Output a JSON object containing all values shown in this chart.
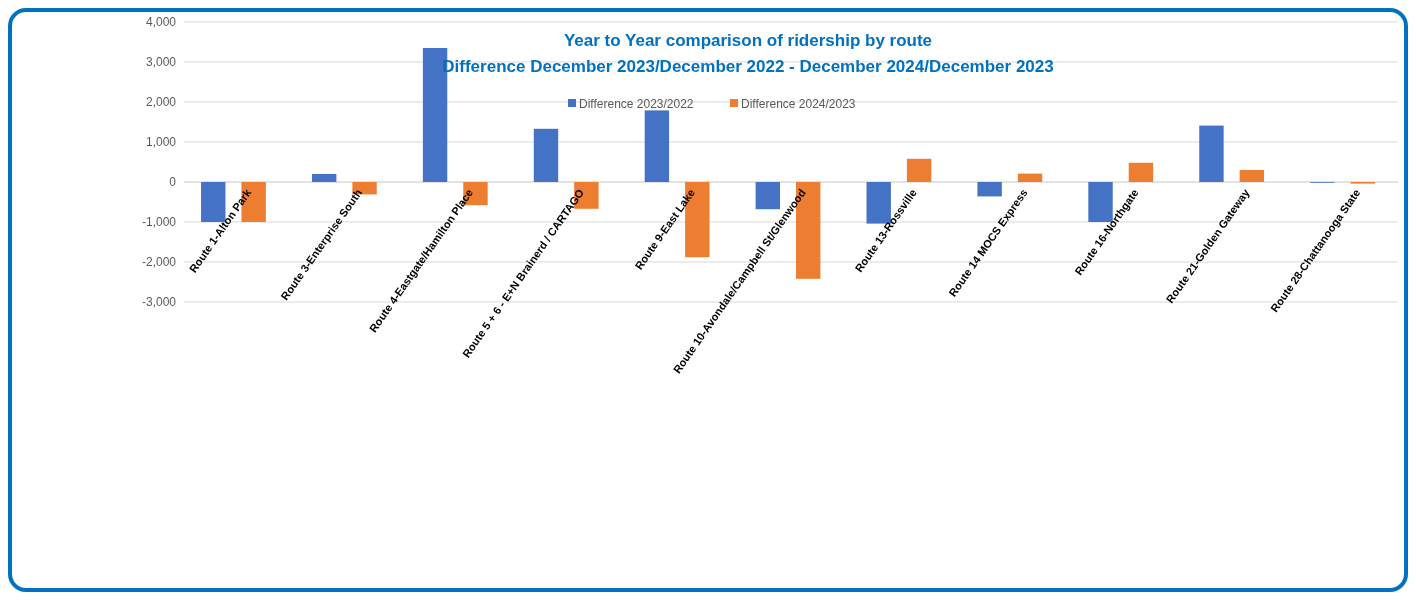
{
  "chart_data": {
    "type": "bar",
    "title": "Year to Year comparison of ridership by route",
    "subtitle": "Difference December 2023/December 2022 - December 2024/December 2023",
    "categories": [
      "Route 1-Alton Park",
      "Route 3-Enterprise South",
      "Route 4-Eastgate/Hamilton Place",
      "Route 5 + 6 - E+N Brainerd / CARTAGO",
      "Route 9-East Lake",
      "Route 10-Avondale/Campbell St/Glenwood",
      "Route 13-Rossville",
      "Route 14 MOCS Express",
      "Route 16-Northgate",
      "Route 21-Golden Gateway",
      "Route 28-Chattanooga State"
    ],
    "series": [
      {
        "name": "Difference 2023/2022",
        "color": "#4472c4",
        "values": [
          -1000,
          200,
          3350,
          1330,
          1790,
          -680,
          -1040,
          -360,
          -1000,
          1410,
          -20
        ]
      },
      {
        "name": "Difference 2024/2023",
        "color": "#ed7d31",
        "values": [
          -1000,
          -310,
          -580,
          -670,
          -1880,
          -2420,
          580,
          210,
          480,
          300,
          -40
        ]
      }
    ],
    "ylim": [
      -3000,
      4000
    ],
    "yticks": [
      {
        "value": -3000,
        "label": "-3,000"
      },
      {
        "value": -2000,
        "label": "-2,000"
      },
      {
        "value": -1000,
        "label": "-1,000"
      },
      0,
      {
        "value": 1000,
        "label": "1,000"
      },
      {
        "value": 2000,
        "label": "2,000"
      },
      {
        "value": 3000,
        "label": "3,000"
      },
      {
        "value": 4000,
        "label": "4,000"
      }
    ],
    "grid": "y",
    "legend": "top"
  }
}
